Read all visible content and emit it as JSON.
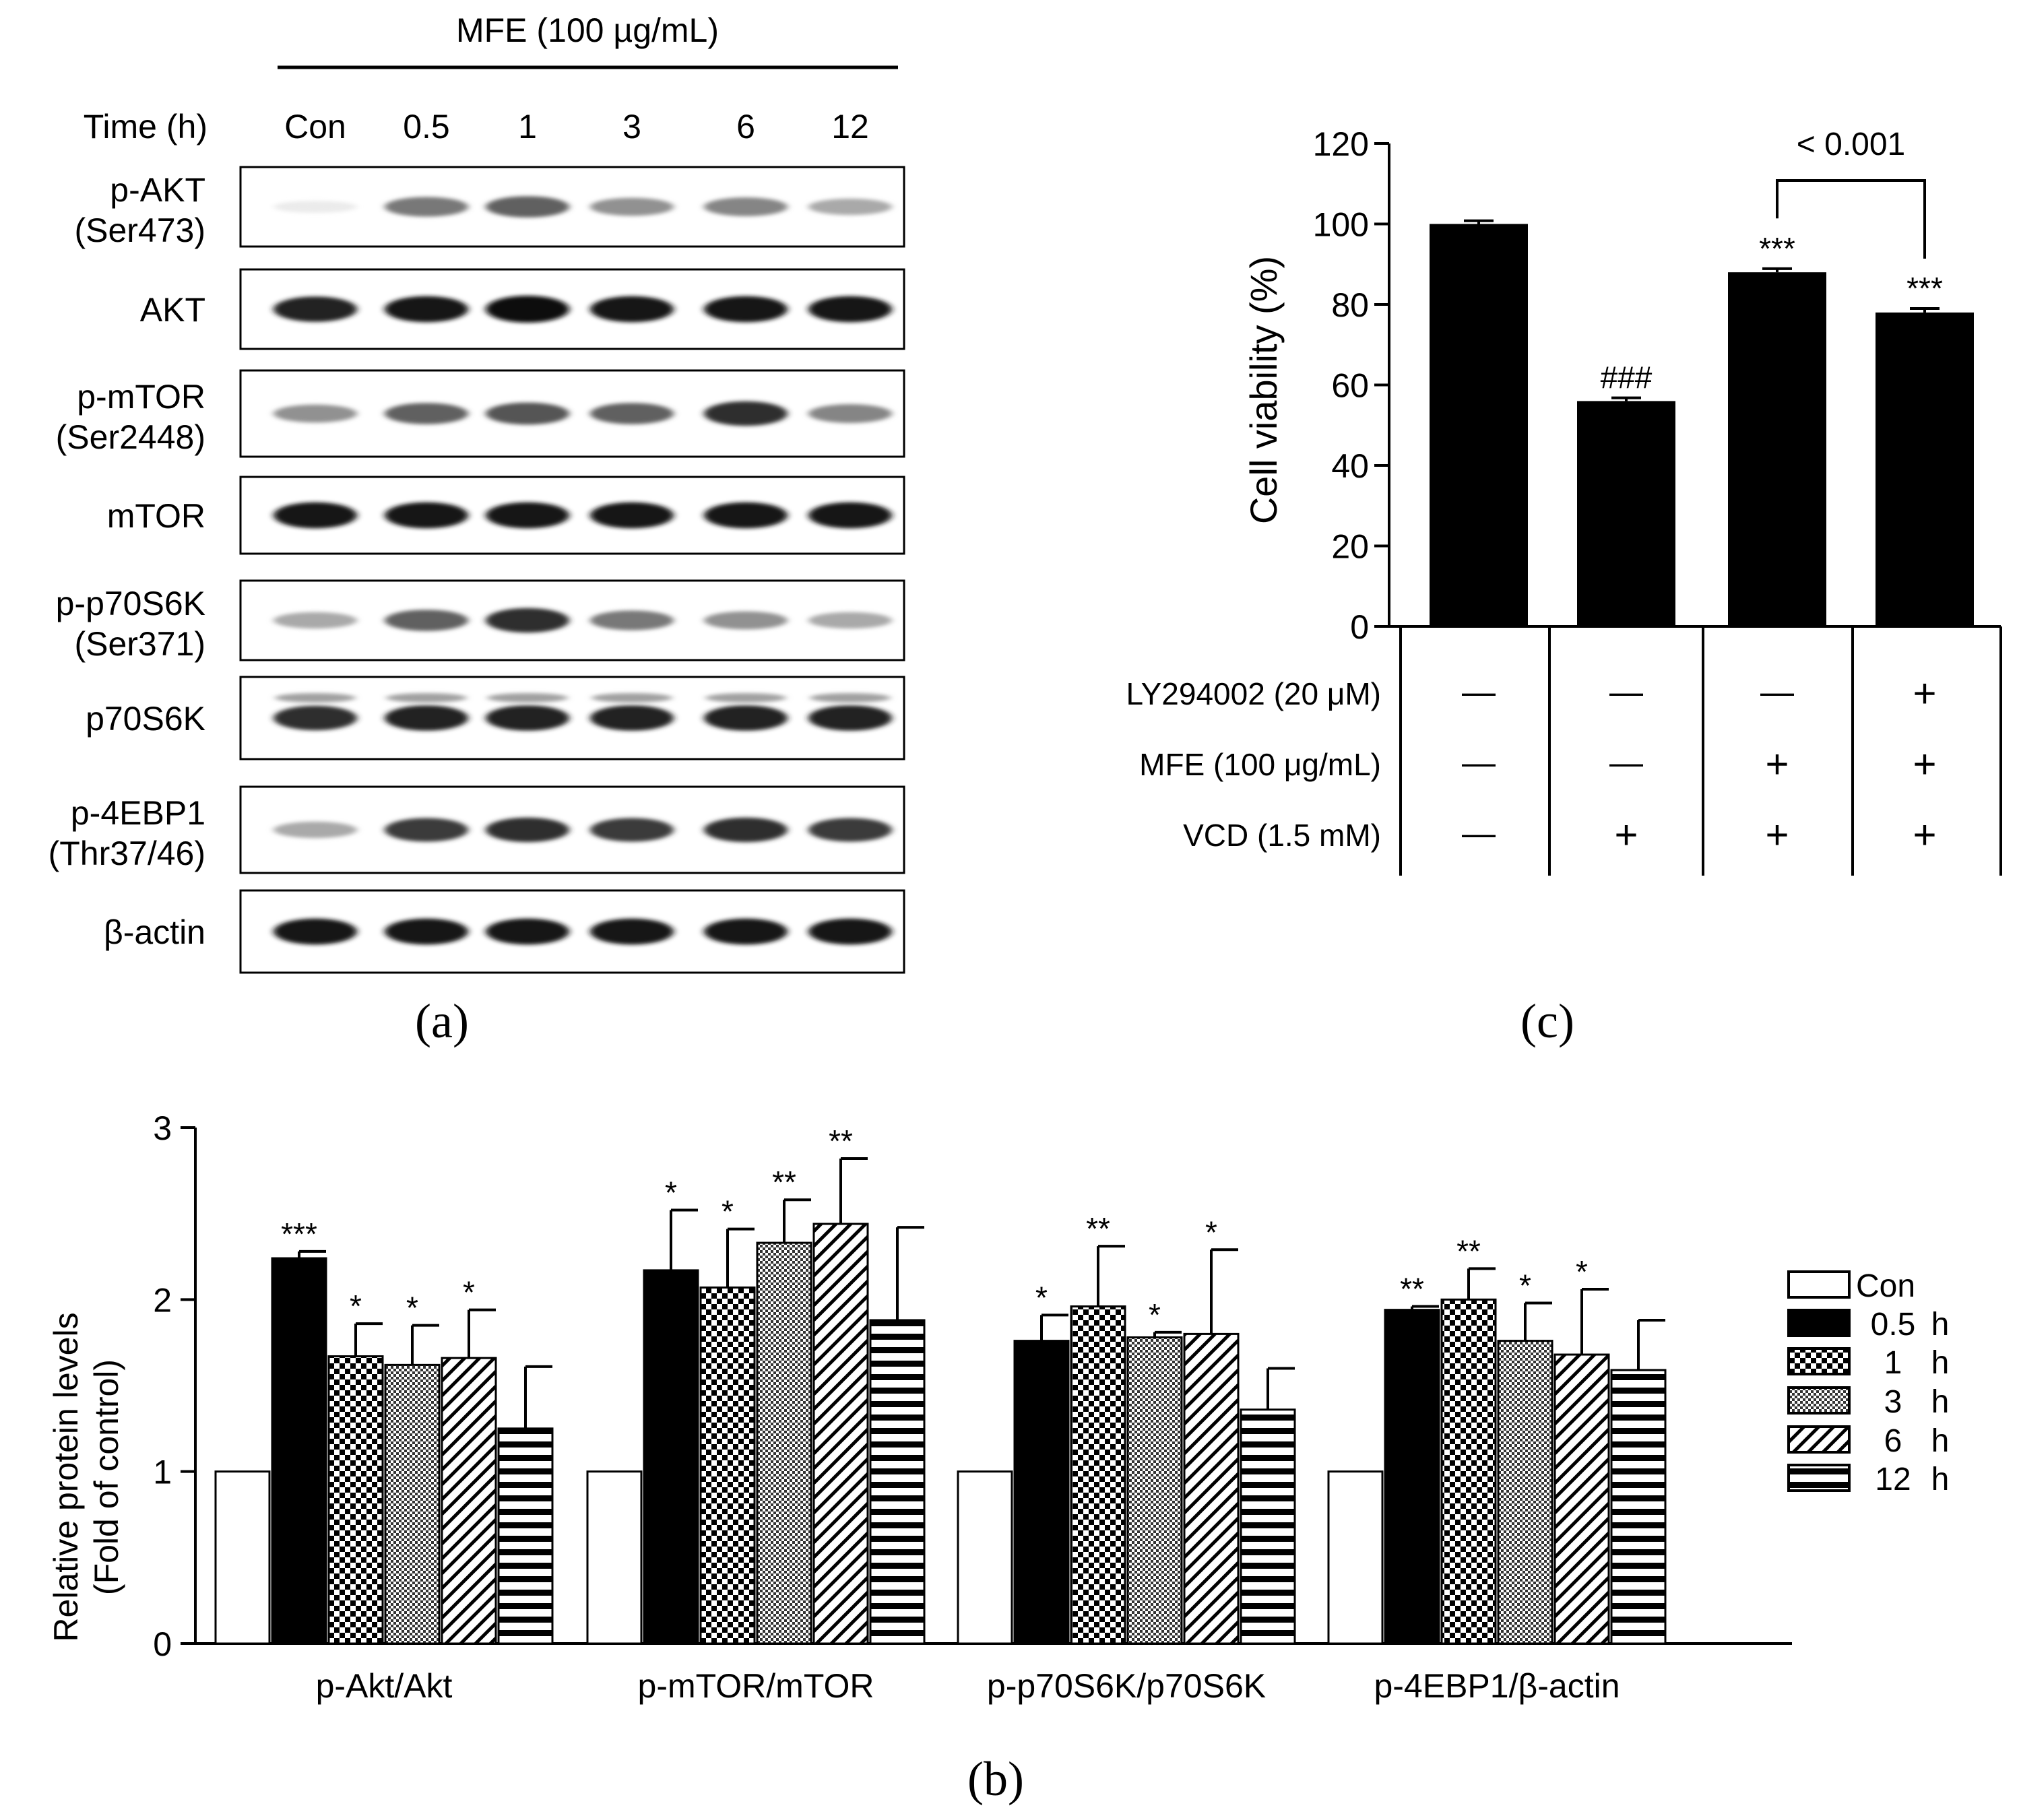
{
  "panel_a": {
    "treatment": "MFE (100 µg/mL)",
    "time_label": "Time (h)",
    "lanes": [
      "Con",
      "0.5",
      "1",
      "3",
      "6",
      "12"
    ],
    "blots": [
      {
        "label1": "p-AKT",
        "label2": "(Ser473)",
        "intensity": [
          0.08,
          0.55,
          0.65,
          0.45,
          0.5,
          0.35
        ],
        "double": false
      },
      {
        "label1": "AKT",
        "label2": "",
        "intensity": [
          0.9,
          0.95,
          1.0,
          0.95,
          0.95,
          0.95
        ],
        "double": false
      },
      {
        "label1": "p-mTOR",
        "label2": "(Ser2448)",
        "intensity": [
          0.45,
          0.65,
          0.7,
          0.65,
          0.85,
          0.5
        ],
        "double": false
      },
      {
        "label1": "mTOR",
        "label2": "",
        "intensity": [
          0.95,
          0.95,
          0.95,
          0.95,
          0.95,
          0.95
        ],
        "double": false
      },
      {
        "label1": "p-p70S6K",
        "label2": "(Ser371)",
        "intensity": [
          0.35,
          0.65,
          0.85,
          0.55,
          0.45,
          0.35
        ],
        "double": false
      },
      {
        "label1": "p70S6K",
        "label2": "",
        "intensity": [
          0.85,
          0.9,
          0.9,
          0.9,
          0.9,
          0.9
        ],
        "double": true
      },
      {
        "label1": "p-4EBP1",
        "label2": "(Thr37/46)",
        "intensity": [
          0.35,
          0.8,
          0.85,
          0.8,
          0.85,
          0.8
        ],
        "double": false
      },
      {
        "label1": "β-actin",
        "label2": "",
        "intensity": [
          0.95,
          0.95,
          0.95,
          0.95,
          0.95,
          0.95
        ],
        "double": false
      }
    ],
    "caption": "(a)"
  },
  "panel_b_caption": "(b)",
  "panel_c_caption": "(c)",
  "colors": {
    "bar": "#000000",
    "fill": "#ffffff",
    "background": "#ffffff"
  },
  "chart_data": [
    {
      "id": "panel-b",
      "type": "bar",
      "ylabel": "Relative protein levels",
      "ylabel2": "(Fold of control)",
      "ylim": [
        0,
        3
      ],
      "yticks": [
        "0",
        "1",
        "2",
        "3"
      ],
      "categories": [
        "p-Akt/Akt",
        "p-mTOR/mTOR",
        "p-p70S6K/p70S6K",
        "p-4EBP1/β-actin"
      ],
      "series": [
        {
          "name": "Con",
          "unit": "",
          "pattern": "white",
          "values": [
            1,
            1,
            1,
            1
          ],
          "errors": [
            0,
            0,
            0,
            0
          ],
          "sig": [
            "",
            "",
            "",
            ""
          ]
        },
        {
          "name": "0.5",
          "unit": "h",
          "pattern": "black",
          "values": [
            2.24,
            2.17,
            1.76,
            1.94
          ],
          "errors": [
            0.04,
            0.35,
            0.15,
            0.02
          ],
          "sig": [
            "***",
            "*",
            "*",
            "**"
          ]
        },
        {
          "name": "1",
          "unit": "h",
          "pattern": "checker",
          "values": [
            1.67,
            2.07,
            1.96,
            2.0
          ],
          "errors": [
            0.19,
            0.34,
            0.35,
            0.18
          ],
          "sig": [
            "*",
            "*",
            "**",
            "**"
          ]
        },
        {
          "name": "3",
          "unit": "h",
          "pattern": "dots",
          "values": [
            1.62,
            2.33,
            1.78,
            1.76
          ],
          "errors": [
            0.23,
            0.25,
            0.03,
            0.22
          ],
          "sig": [
            "*",
            "**",
            "*",
            "*"
          ]
        },
        {
          "name": "6",
          "unit": "h",
          "pattern": "diag",
          "values": [
            1.66,
            2.44,
            1.8,
            1.68
          ],
          "errors": [
            0.28,
            0.38,
            0.49,
            0.38
          ],
          "sig": [
            "*",
            "**",
            "*",
            "*"
          ]
        },
        {
          "name": "12",
          "unit": "h",
          "pattern": "horiz",
          "values": [
            1.25,
            1.88,
            1.36,
            1.59
          ],
          "errors": [
            0.36,
            0.54,
            0.24,
            0.29
          ],
          "sig": [
            "",
            "",
            "",
            ""
          ]
        }
      ]
    },
    {
      "id": "panel-c",
      "type": "bar",
      "ylabel": "Cell viability (%)",
      "ylim": [
        0,
        120
      ],
      "yticks": [
        "0",
        "20",
        "40",
        "60",
        "80",
        "100",
        "120"
      ],
      "values": [
        100,
        56,
        88,
        78
      ],
      "errors": [
        0.8,
        0.8,
        0.9,
        1.0
      ],
      "sig": [
        "",
        "###",
        "***",
        "***"
      ],
      "bracket": {
        "from": 2,
        "to": 3,
        "label": "< 0.001"
      },
      "treatments": [
        {
          "label": "LY294002 (20 μM)",
          "marks": [
            "—",
            "—",
            "—",
            "+"
          ]
        },
        {
          "label": "MFE (100 μg/mL)",
          "marks": [
            "—",
            "—",
            "+",
            "+"
          ]
        },
        {
          "label": "VCD (1.5 mM)",
          "marks": [
            "—",
            "+",
            "+",
            "+"
          ]
        }
      ]
    }
  ]
}
